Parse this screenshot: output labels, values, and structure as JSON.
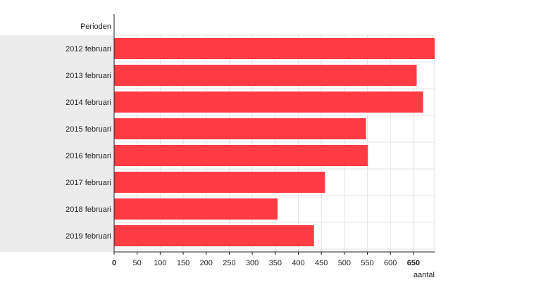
{
  "chart_data": {
    "type": "bar",
    "orientation": "horizontal",
    "ylabel": "Perioden",
    "xlabel": "aantal",
    "categories": [
      "2012 februari",
      "2013 februari",
      "2014 februari",
      "2015 februari",
      "2016 februari",
      "2017 februari",
      "2018 februari",
      "2019 februari"
    ],
    "series": [
      {
        "values": [
          696,
          657,
          671,
          547,
          551,
          458,
          355,
          434
        ]
      }
    ],
    "xlim": [
      0,
      696
    ],
    "xticks": [
      0,
      50,
      100,
      150,
      200,
      250,
      300,
      350,
      400,
      450,
      500,
      550,
      600,
      650
    ],
    "emphasized_ticks": [
      0,
      650
    ],
    "grid": true,
    "colors": {
      "bar": "#ff3b43",
      "grid": "#e4e4e4",
      "label_band": "#ececec",
      "axis": "#222222"
    }
  }
}
